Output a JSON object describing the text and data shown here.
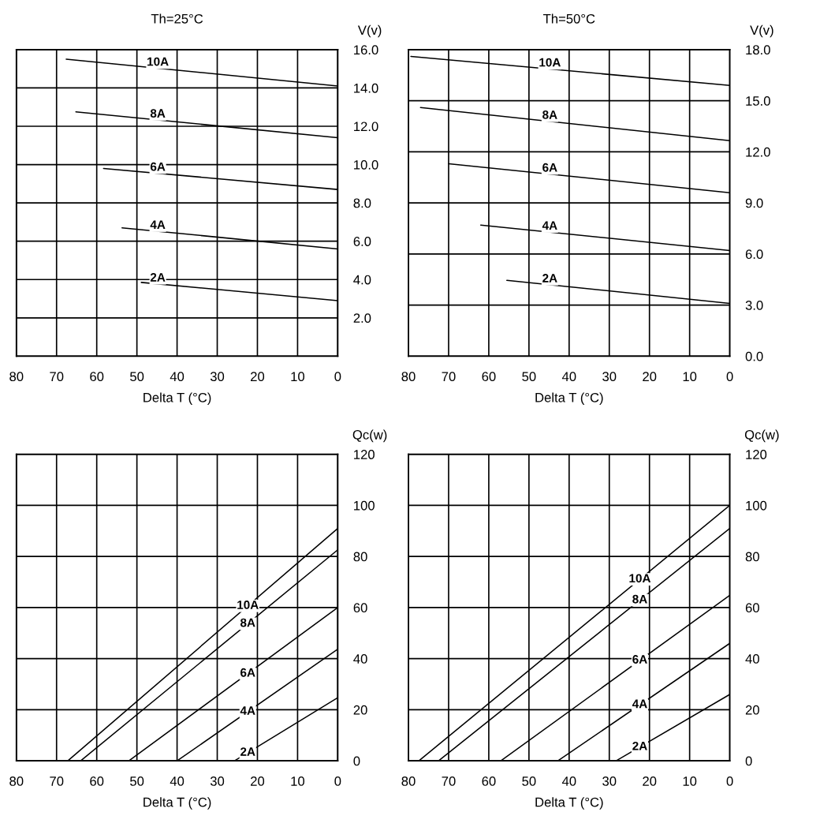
{
  "chart_data": [
    {
      "type": "line",
      "title": "Th=25°C",
      "xlabel": "Delta T (°C)",
      "ylabel": "V(v)",
      "grid": true,
      "legend": false,
      "xlim": [
        80,
        0
      ],
      "xticks": [
        80,
        70,
        60,
        50,
        40,
        30,
        20,
        10,
        0
      ],
      "ylim": [
        0,
        16
      ],
      "yticks": [
        {
          "value": 0,
          "label": null
        },
        {
          "value": 2,
          "label": "2.0"
        },
        {
          "value": 4,
          "label": "4.0"
        },
        {
          "value": 6,
          "label": "6.0"
        },
        {
          "value": 8,
          "label": "8.0"
        },
        {
          "value": 10,
          "label": "10.0"
        },
        {
          "value": 12,
          "label": "12.0"
        },
        {
          "value": 14,
          "label": "14.0"
        },
        {
          "value": 16,
          "label": "16.0"
        }
      ],
      "series": [
        {
          "name": "10A",
          "color": "#000000",
          "x": [
            67.6,
            0
          ],
          "values": [
            15.5,
            14.1
          ]
        },
        {
          "name": "8A",
          "color": "#000000",
          "x": [
            65.2,
            0
          ],
          "values": [
            12.75,
            11.4
          ]
        },
        {
          "name": "6A",
          "color": "#000000",
          "x": [
            58.3,
            0
          ],
          "values": [
            9.8,
            8.7
          ]
        },
        {
          "name": "4A",
          "color": "#000000",
          "x": [
            53.7,
            0
          ],
          "values": [
            6.7,
            5.6
          ]
        },
        {
          "name": "2A",
          "color": "#000000",
          "x": [
            48.9,
            0
          ],
          "values": [
            3.85,
            2.9
          ]
        }
      ]
    },
    {
      "type": "line",
      "title": "Th=50°C",
      "xlabel": "Delta T (°C)",
      "ylabel": "V(v)",
      "grid": true,
      "legend": false,
      "xlim": [
        80,
        0
      ],
      "xticks": [
        80,
        70,
        60,
        50,
        40,
        30,
        20,
        10,
        0
      ],
      "ylim": [
        0,
        18
      ],
      "yticks": [
        {
          "value": 0,
          "label": "0.0"
        },
        {
          "value": 3,
          "label": "3.0"
        },
        {
          "value": 6,
          "label": "6.0"
        },
        {
          "value": 9,
          "label": "9.0"
        },
        {
          "value": 12,
          "label": "12.0"
        },
        {
          "value": 15,
          "label": "15.0"
        },
        {
          "value": 18,
          "label": "18.0"
        }
      ],
      "series": [
        {
          "name": "10A",
          "color": "#000000",
          "x": [
            79.4,
            0
          ],
          "values": [
            17.6,
            15.9
          ]
        },
        {
          "name": "8A",
          "color": "#000000",
          "x": [
            77,
            0
          ],
          "values": [
            14.6,
            12.65
          ]
        },
        {
          "name": "6A",
          "color": "#000000",
          "x": [
            70,
            0
          ],
          "values": [
            11.3,
            9.6
          ]
        },
        {
          "name": "4A",
          "color": "#000000",
          "x": [
            62,
            0
          ],
          "values": [
            7.7,
            6.2
          ]
        },
        {
          "name": "2A",
          "color": "#000000",
          "x": [
            55.5,
            0
          ],
          "values": [
            4.45,
            3.1
          ]
        }
      ]
    },
    {
      "type": "line",
      "xlabel": "Delta T (°C)",
      "ylabel": "Qc(w)",
      "grid": true,
      "legend": false,
      "xlim": [
        80,
        0
      ],
      "xticks": [
        80,
        70,
        60,
        50,
        40,
        30,
        20,
        10,
        0
      ],
      "ylim": [
        0,
        120
      ],
      "yticks": [
        0,
        20,
        40,
        60,
        80,
        100,
        120
      ],
      "series": [
        {
          "name": "10A",
          "color": "#000000",
          "x": [
            67.2,
            0
          ],
          "values": [
            0,
            91
          ]
        },
        {
          "name": "8A",
          "color": "#000000",
          "x": [
            64,
            0
          ],
          "values": [
            0,
            82.6
          ]
        },
        {
          "name": "6A",
          "color": "#000000",
          "x": [
            52,
            0
          ],
          "values": [
            0,
            60
          ]
        },
        {
          "name": "4A",
          "color": "#000000",
          "x": [
            40,
            0
          ],
          "values": [
            0,
            43.7
          ]
        },
        {
          "name": "2A",
          "color": "#000000",
          "x": [
            25.7,
            0
          ],
          "values": [
            0,
            24.7
          ]
        }
      ]
    },
    {
      "type": "line",
      "xlabel": "Delta T (°C)",
      "ylabel": "Qc(w)",
      "grid": true,
      "legend": false,
      "xlim": [
        80,
        0
      ],
      "xticks": [
        80,
        70,
        60,
        50,
        40,
        30,
        20,
        10,
        0
      ],
      "ylim": [
        0,
        120
      ],
      "yticks": [
        0,
        20,
        40,
        60,
        80,
        100,
        120
      ],
      "series": [
        {
          "name": "10A",
          "color": "#000000",
          "x": [
            77.4,
            0
          ],
          "values": [
            0,
            100
          ]
        },
        {
          "name": "8A",
          "color": "#000000",
          "x": [
            72.5,
            0
          ],
          "values": [
            0,
            91
          ]
        },
        {
          "name": "6A",
          "color": "#000000",
          "x": [
            57,
            0
          ],
          "values": [
            0,
            64.8
          ]
        },
        {
          "name": "4A",
          "color": "#000000",
          "x": [
            42.8,
            0
          ],
          "values": [
            0,
            46
          ]
        },
        {
          "name": "2A",
          "color": "#000000",
          "x": [
            28.3,
            0
          ],
          "values": [
            0,
            26
          ]
        }
      ]
    }
  ]
}
